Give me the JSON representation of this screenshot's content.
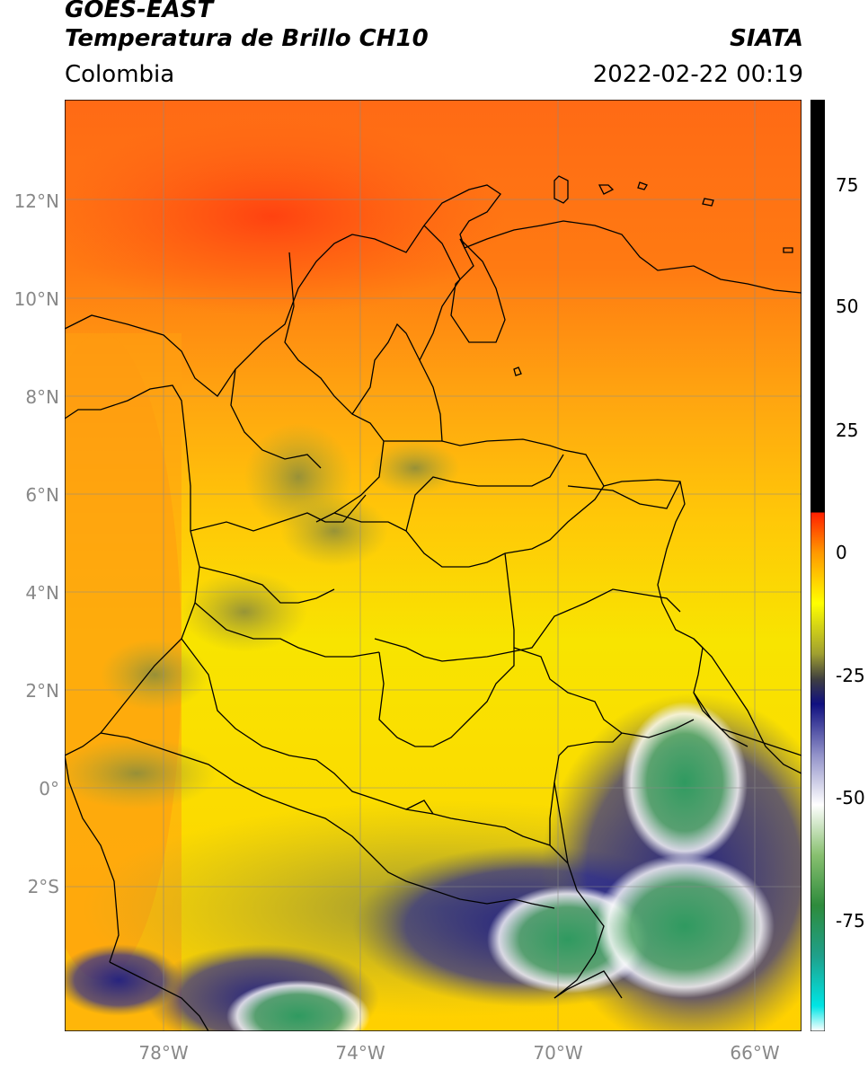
{
  "header": {
    "satellite": "GOES-EAST",
    "product": "Temperatura de Brillo CH10",
    "region": "Colombia",
    "agency": "SIATA",
    "datetime": "2022-02-22 00:19"
  },
  "axes": {
    "lat_labels": [
      "12°N",
      "10°N",
      "8°N",
      "6°N",
      "4°N",
      "2°N",
      "0°",
      "2°S"
    ],
    "lon_labels": [
      "78°W",
      "74°W",
      "70°W",
      "66°W"
    ]
  },
  "colorbar": {
    "tick_labels": [
      "75",
      "50",
      "25",
      "0",
      "-25",
      "-50",
      "-75"
    ],
    "range": [
      -95,
      90
    ],
    "stops": [
      {
        "v": -95,
        "c": "#ffffff"
      },
      {
        "v": -90,
        "c": "#00e5e5"
      },
      {
        "v": -80,
        "c": "#1fa08a"
      },
      {
        "v": -70,
        "c": "#2e8b3c"
      },
      {
        "v": -60,
        "c": "#88c070"
      },
      {
        "v": -50,
        "c": "#ffffff"
      },
      {
        "v": -40,
        "c": "#9090c8"
      },
      {
        "v": -30,
        "c": "#101080"
      },
      {
        "v": -25,
        "c": "#404040"
      },
      {
        "v": -20,
        "c": "#a0a030"
      },
      {
        "v": -10,
        "c": "#ffff00"
      },
      {
        "v": 0,
        "c": "#ff9900"
      },
      {
        "v": 8,
        "c": "#ff2000"
      },
      {
        "v": 8.01,
        "c": "#000000"
      },
      {
        "v": 90,
        "c": "#000000"
      }
    ]
  },
  "colors": {
    "ocean_north": "#ff5a1a",
    "warm_orange": "#ff9a10",
    "land_yellow": "#f7e800",
    "cloud_olive": "#8a8a3a",
    "cold_blue": "#1a1a80",
    "very_cold_green": "#3a9a5a"
  }
}
